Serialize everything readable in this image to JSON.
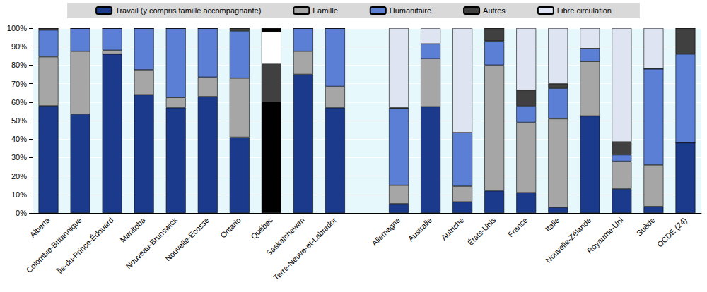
{
  "chart_data": {
    "type": "bar",
    "stacked": true,
    "grid": true,
    "legend": "top",
    "categories": [
      "Alberta",
      "Colombie-Britannique",
      "Île-du-Prince-Édouard",
      "Manitoba",
      "Nouveau-Brunswick",
      "Nouvelle-Ecosse",
      "Ontario",
      "Québec",
      "Saskatchewan",
      "Terre-Neuve-et-Labrador",
      null,
      "Allemagne",
      "Australie",
      "Autriche",
      "États-Unis",
      "France",
      "Italie",
      "Nouvelle-Zélande",
      "Royaume-Uni",
      "Suède",
      "OCDE (24)"
    ],
    "ylim": [
      0,
      100
    ],
    "yticks": [
      {
        "value": 0,
        "label": "0%"
      },
      {
        "value": 10,
        "label": "10%"
      },
      {
        "value": 20,
        "label": "20%"
      },
      {
        "value": 30,
        "label": "30%"
      },
      {
        "value": 40,
        "label": "40%"
      },
      {
        "value": 50,
        "label": "50%"
      },
      {
        "value": 60,
        "label": "60%"
      },
      {
        "value": 70,
        "label": "70%"
      },
      {
        "value": 80,
        "label": "80%"
      },
      {
        "value": 90,
        "label": "90%"
      },
      {
        "value": 100,
        "label": "100%"
      }
    ],
    "series": [
      {
        "name": "Travail (y compris famille accompagnante)",
        "colors": [
          "#1b3a8c",
          "#1b3a8c",
          "#1b3a8c",
          "#1b3a8c",
          "#1b3a8c",
          "#1b3a8c",
          "#1b3a8c",
          "#000000",
          "#1b3a8c",
          "#1b3a8c",
          "#1b3a8c",
          "#1b3a8c",
          "#1b3a8c",
          "#1b3a8c",
          "#1b3a8c",
          "#1b3a8c",
          "#1b3a8c",
          "#1b3a8c",
          "#1b3a8c",
          "#1b3a8c",
          "#1b3a8c"
        ],
        "values": [
          58,
          53.5,
          86,
          64,
          57,
          63,
          41,
          60,
          75,
          57,
          null,
          5,
          57.5,
          6,
          12,
          11,
          3,
          52.5,
          13,
          3.5,
          38
        ]
      },
      {
        "name": "Famille",
        "colors": [
          "#a6a6a6",
          "#a6a6a6",
          "#a6a6a6",
          "#a6a6a6",
          "#a6a6a6",
          "#a6a6a6",
          "#a6a6a6",
          "#404040",
          "#a6a6a6",
          "#a6a6a6",
          "#a6a6a6",
          "#a6a6a6",
          "#a6a6a6",
          "#a6a6a6",
          "#a6a6a6",
          "#a6a6a6",
          "#a6a6a6",
          "#a6a6a6",
          "#a6a6a6",
          "#a6a6a6",
          "#a6a6a6"
        ],
        "values": [
          26.5,
          34,
          2,
          13.5,
          5.5,
          10.5,
          32,
          20.5,
          12.5,
          11.5,
          null,
          10,
          26,
          8.5,
          68,
          38,
          48,
          29.5,
          15,
          22.5,
          0
        ]
      },
      {
        "name": "Humanitaire",
        "colors": [
          "#5b7fd4",
          "#5b7fd4",
          "#5b7fd4",
          "#5b7fd4",
          "#5b7fd4",
          "#5b7fd4",
          "#5b7fd4",
          "#ffffff",
          "#5b7fd4",
          "#5b7fd4",
          "#5b7fd4",
          "#5b7fd4",
          "#5b7fd4",
          "#5b7fd4",
          "#5b7fd4",
          "#5b7fd4",
          "#5b7fd4",
          "#5b7fd4",
          "#5b7fd4",
          "#5b7fd4",
          "#5b7fd4"
        ],
        "values": [
          14.5,
          12.5,
          12,
          22.5,
          37.5,
          26.5,
          25.5,
          17.5,
          12.5,
          31.5,
          null,
          41.5,
          8,
          29,
          13,
          9,
          16.5,
          7,
          3.5,
          52,
          48
        ]
      },
      {
        "name": "Autres",
        "colors": [
          "#404040",
          "#404040",
          "#404040",
          "#404040",
          "#404040",
          "#404040",
          "#404040",
          "#000000",
          "#404040",
          "#404040",
          "#404040",
          "#404040",
          "#404040",
          "#404040",
          "#404040",
          "#404040",
          "#404040",
          "#404040",
          "#404040",
          "#404040",
          "#404040"
        ],
        "values": [
          1,
          0,
          0,
          0,
          0,
          0,
          1.5,
          2,
          0,
          0,
          null,
          0.5,
          0,
          0,
          7,
          8.5,
          2.5,
          0,
          7,
          0,
          14
        ]
      },
      {
        "name": "Libre circulation",
        "colors": [
          "#dfe4f3",
          "#dfe4f3",
          "#dfe4f3",
          "#dfe4f3",
          "#dfe4f3",
          "#dfe4f3",
          "#dfe4f3",
          "#dfe4f3",
          "#dfe4f3",
          "#dfe4f3",
          "#dfe4f3",
          "#dfe4f3",
          "#dfe4f3",
          "#dfe4f3",
          "#dfe4f3",
          "#dfe4f3",
          "#dfe4f3",
          "#dfe4f3",
          "#dfe4f3",
          "#dfe4f3",
          "#dfe4f3"
        ],
        "values": [
          0,
          0,
          0,
          0,
          0,
          0,
          0,
          0,
          0,
          0,
          null,
          43,
          8.5,
          56.5,
          0,
          33.5,
          30,
          11,
          61.5,
          22,
          0
        ]
      }
    ]
  }
}
